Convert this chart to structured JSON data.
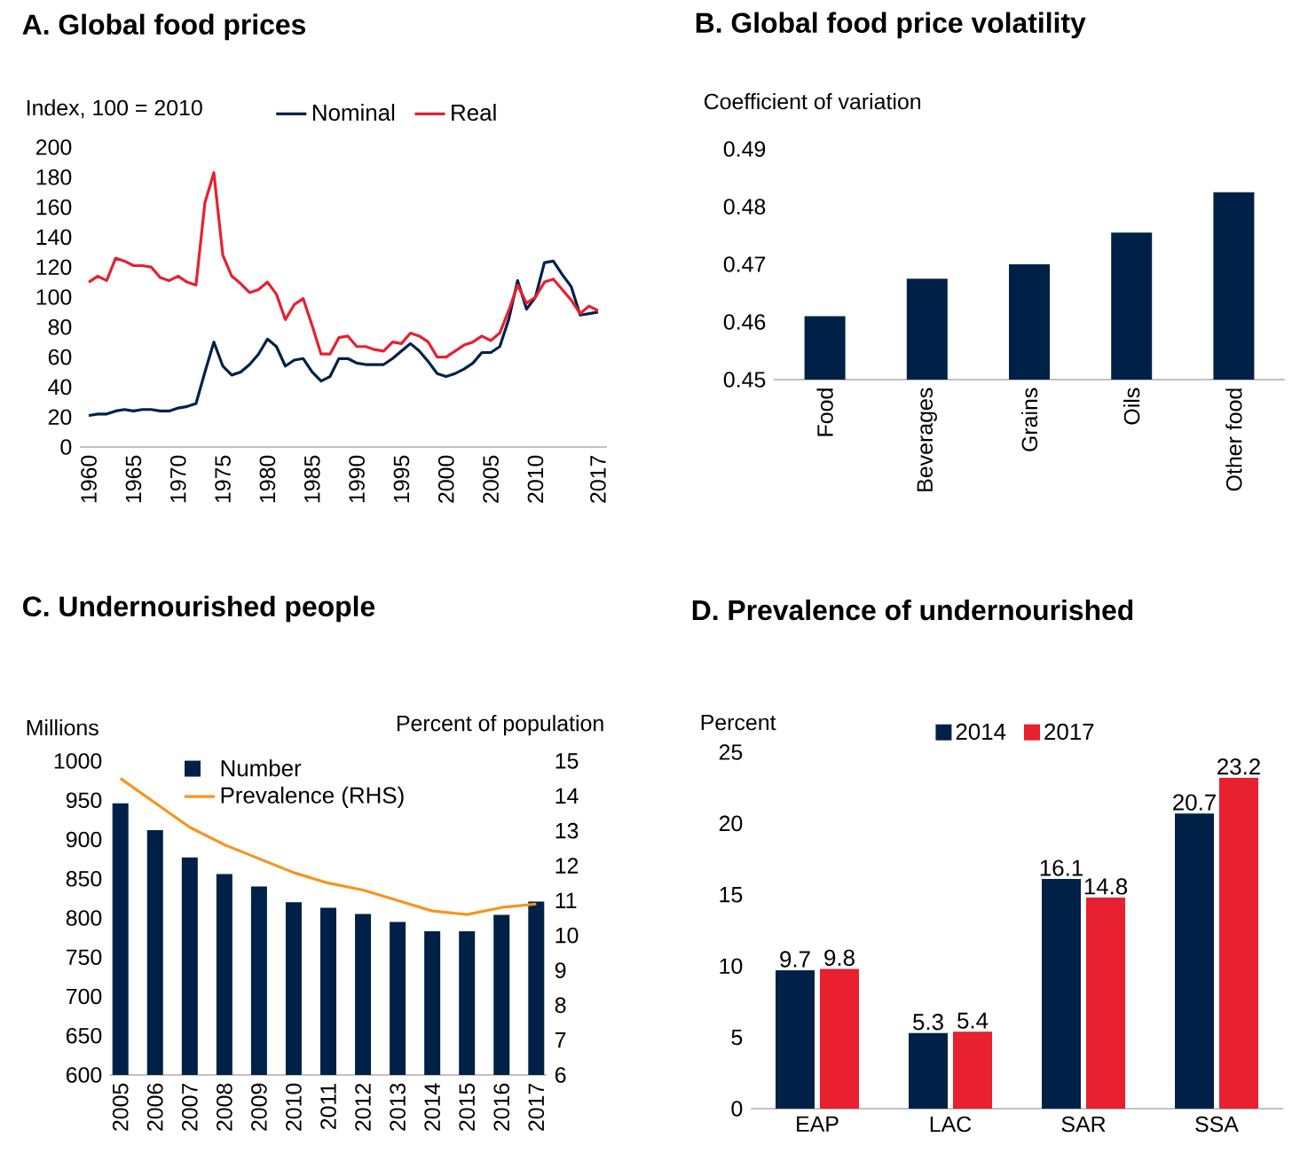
{
  "chart_data": [
    {
      "type": "line",
      "title": "A. Global food prices",
      "ylabel": "Index, 100 = 2010",
      "legend": "top",
      "x": [
        1960,
        1961,
        1962,
        1963,
        1964,
        1965,
        1966,
        1967,
        1968,
        1969,
        1970,
        1971,
        1972,
        1973,
        1974,
        1975,
        1976,
        1977,
        1978,
        1979,
        1980,
        1981,
        1982,
        1983,
        1984,
        1985,
        1986,
        1987,
        1988,
        1989,
        1990,
        1991,
        1992,
        1993,
        1994,
        1995,
        1996,
        1997,
        1998,
        1999,
        2000,
        2001,
        2002,
        2003,
        2004,
        2005,
        2006,
        2007,
        2008,
        2009,
        2010,
        2011,
        2012,
        2013,
        2014,
        2015,
        2016,
        2017
      ],
      "series": [
        {
          "name": "Nominal",
          "color": "#002147",
          "values": [
            21,
            22,
            22,
            24,
            25,
            24,
            25,
            25,
            24,
            24,
            26,
            27,
            29,
            50,
            70,
            54,
            48,
            50,
            55,
            62,
            72,
            67,
            54,
            58,
            59,
            50,
            44,
            47,
            59,
            59,
            56,
            55,
            55,
            55,
            59,
            64,
            69,
            64,
            57,
            49,
            47,
            49,
            52,
            56,
            63,
            63,
            67,
            85,
            111,
            92,
            100,
            123,
            124,
            115,
            107,
            88,
            89,
            90
          ]
        },
        {
          "name": "Real",
          "color": "#e8202f",
          "values": [
            110,
            114,
            111,
            126,
            124,
            121,
            121,
            120,
            113,
            111,
            114,
            110,
            108,
            163,
            183,
            128,
            114,
            109,
            103,
            105,
            110,
            102,
            85,
            95,
            99,
            81,
            62,
            62,
            73,
            74,
            67,
            67,
            65,
            64,
            70,
            69,
            76,
            74,
            70,
            60,
            60,
            64,
            68,
            70,
            74,
            71,
            76,
            91,
            108,
            96,
            100,
            110,
            112,
            105,
            98,
            89,
            94,
            91
          ]
        }
      ],
      "xlim": [
        1959,
        2018
      ],
      "xticks": [
        1960,
        1965,
        1970,
        1975,
        1980,
        1985,
        1990,
        1995,
        2000,
        2005,
        2010,
        2017
      ],
      "ylim": [
        0,
        200
      ],
      "yticks": [
        0,
        20,
        40,
        60,
        80,
        100,
        120,
        140,
        160,
        180,
        200
      ]
    },
    {
      "type": "bar",
      "title": "B. Global food price volatility",
      "ylabel": "Coefficient of variation",
      "categories": [
        "Food",
        "Beverages",
        "Grains",
        "Oils",
        "Other food"
      ],
      "values": [
        0.461,
        0.4675,
        0.47,
        0.4755,
        0.4825
      ],
      "color": "#002147",
      "ylim": [
        0.45,
        0.49
      ],
      "yticks": [
        0.45,
        0.46,
        0.47,
        0.48,
        0.49
      ]
    },
    {
      "type": "bar",
      "title": "C. Undernourished people",
      "ylabel": "Millions",
      "y2label": "Percent of population",
      "legend": "top left",
      "categories": [
        "2005",
        "2006",
        "2007",
        "2008",
        "2009",
        "2010",
        "2011",
        "2012",
        "2013",
        "2014",
        "2015",
        "2016",
        "2017"
      ],
      "series": [
        {
          "name": "Number",
          "color": "#002147",
          "values": [
            946,
            912,
            877,
            856,
            840,
            820,
            813,
            805,
            795,
            783,
            783,
            804,
            821
          ]
        },
        {
          "name": "Prevalence (RHS)",
          "type": "line",
          "axis": "y2",
          "color": "#f7941d",
          "values": [
            14.5,
            13.8,
            13.1,
            12.6,
            12.2,
            11.8,
            11.5,
            11.3,
            11.0,
            10.7,
            10.6,
            10.8,
            10.9
          ]
        }
      ],
      "ylim": [
        600,
        1000
      ],
      "yticks": [
        600,
        650,
        700,
        750,
        800,
        850,
        900,
        950,
        1000
      ],
      "y2lim": [
        6,
        15
      ],
      "y2ticks": [
        6,
        7,
        8,
        9,
        10,
        11,
        12,
        13,
        14,
        15
      ]
    },
    {
      "type": "bar",
      "title": "D. Prevalence of undernourished",
      "ylabel": "Percent",
      "legend": "top",
      "categories": [
        "EAP",
        "LAC",
        "SAR",
        "SSA"
      ],
      "series": [
        {
          "name": "2014",
          "color": "#002147",
          "values": [
            9.7,
            5.3,
            16.1,
            20.7
          ],
          "value_labels": [
            "9.7",
            "5.3",
            "16.1",
            "20.7"
          ]
        },
        {
          "name": "2017",
          "color": "#e8202f",
          "values": [
            9.8,
            5.4,
            14.8,
            23.2
          ],
          "value_labels": [
            "9.8",
            "5.4",
            "14.8",
            "23.2"
          ]
        }
      ],
      "ylim": [
        0,
        25
      ],
      "yticks": [
        0,
        5,
        10,
        15,
        20,
        25
      ]
    }
  ]
}
